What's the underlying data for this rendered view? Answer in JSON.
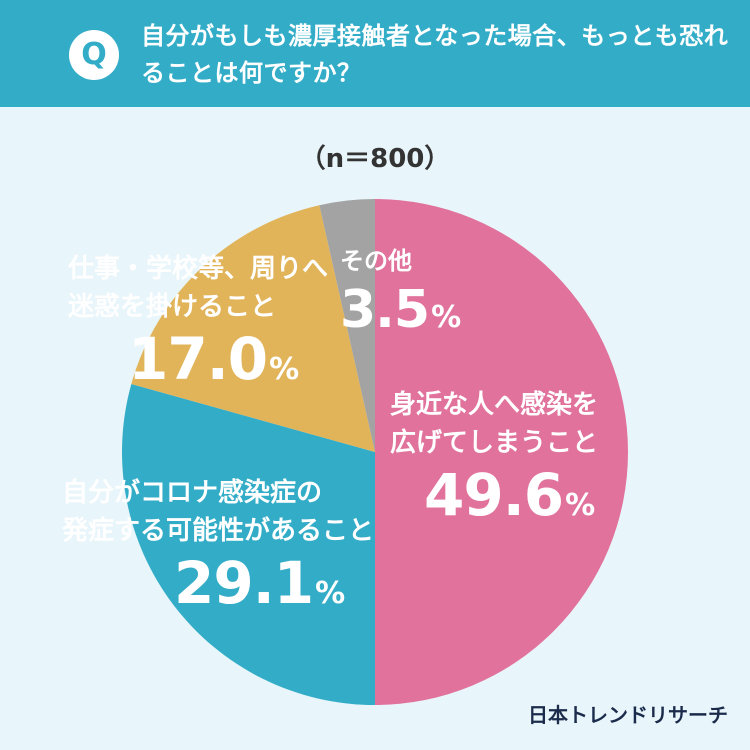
{
  "header": {
    "badge": "Q",
    "question": "自分がもしも濃厚接触者となった場合、もっとも恐れることは何ですか？"
  },
  "n_label": "（n＝800）",
  "chart_data": {
    "type": "pie",
    "title": "",
    "start": "top",
    "direction": "clockwise",
    "slices": [
      {
        "label": "身近な人へ感染を広げてしまうこと",
        "value": 49.6,
        "display": "49.6",
        "unit": "%",
        "color": "#e1729c"
      },
      {
        "label": "自分がコロナ感染症の発症する可能性があること",
        "value": 29.1,
        "display": "29.1",
        "unit": "%",
        "color": "#33adc7"
      },
      {
        "label": "仕事・学校等、周りへ迷惑を掛けること",
        "value": 17.0,
        "display": "17.0",
        "unit": "%",
        "color": "#e2b45a"
      },
      {
        "label": "その他",
        "value": 3.5,
        "display": "3.5",
        "unit": "%",
        "color": "#a3a3a3"
      }
    ]
  },
  "labels": [
    {
      "line1": "身近な人へ感染を",
      "line2": "広げてしまうこと"
    },
    {
      "line1": "自分がコロナ感染症の",
      "line2": "発症する可能性があること"
    },
    {
      "line1": "仕事・学校等、周りへ",
      "line2": "迷惑を掛けること"
    },
    {
      "line1": "その他",
      "line2": ""
    }
  ],
  "logo": "日本トレンドリサーチ"
}
